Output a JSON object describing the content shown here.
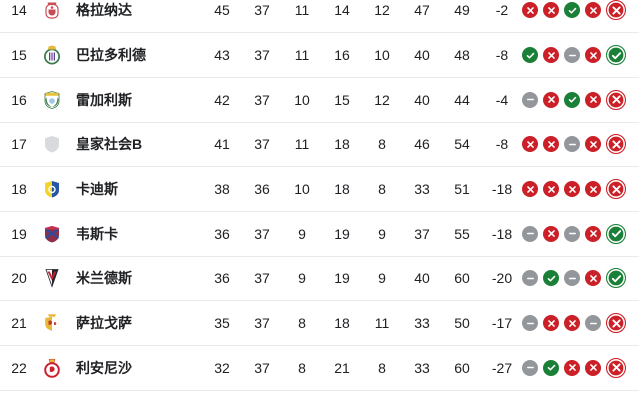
{
  "colors": {
    "win": "#1a8038",
    "loss": "#cb2027",
    "draw": "#93969b",
    "divider": "#e9eaec",
    "text": "#202124",
    "background": "#ffffff"
  },
  "table": {
    "rows": [
      {
        "position": "14",
        "team": "格拉纳达",
        "logo": "granada-crest",
        "stats": [
          "45",
          "37",
          "11",
          "14",
          "12",
          "47",
          "49",
          "-2"
        ],
        "form": [
          "loss",
          "loss",
          "win",
          "loss",
          "loss"
        ]
      },
      {
        "position": "15",
        "team": "巴拉多利德",
        "logo": "valladolid-crest",
        "stats": [
          "43",
          "37",
          "11",
          "16",
          "10",
          "40",
          "48",
          "-8"
        ],
        "form": [
          "win",
          "loss",
          "draw",
          "loss",
          "win"
        ]
      },
      {
        "position": "16",
        "team": "雷加利斯",
        "logo": "leganes-crest",
        "stats": [
          "42",
          "37",
          "10",
          "15",
          "12",
          "40",
          "44",
          "-4"
        ],
        "form": [
          "draw",
          "loss",
          "win",
          "loss",
          "loss"
        ]
      },
      {
        "position": "17",
        "team": "皇家社会B",
        "logo": "sociedad-b-crest",
        "stats": [
          "41",
          "37",
          "11",
          "18",
          "8",
          "46",
          "54",
          "-8"
        ],
        "form": [
          "loss",
          "loss",
          "draw",
          "loss",
          "loss"
        ]
      },
      {
        "position": "18",
        "team": "卡迪斯",
        "logo": "cadiz-crest",
        "stats": [
          "38",
          "36",
          "10",
          "18",
          "8",
          "33",
          "51",
          "-18"
        ],
        "form": [
          "loss",
          "loss",
          "loss",
          "loss",
          "loss"
        ]
      },
      {
        "position": "19",
        "team": "韦斯卡",
        "logo": "huesca-crest",
        "stats": [
          "36",
          "37",
          "9",
          "19",
          "9",
          "37",
          "55",
          "-18"
        ],
        "form": [
          "draw",
          "loss",
          "draw",
          "loss",
          "win"
        ]
      },
      {
        "position": "20",
        "team": "米兰德斯",
        "logo": "mirandes-crest",
        "stats": [
          "36",
          "37",
          "9",
          "19",
          "9",
          "40",
          "60",
          "-20"
        ],
        "form": [
          "draw",
          "win",
          "draw",
          "loss",
          "win"
        ]
      },
      {
        "position": "21",
        "team": "萨拉戈萨",
        "logo": "zaragoza-crest",
        "stats": [
          "35",
          "37",
          "8",
          "18",
          "11",
          "33",
          "50",
          "-17"
        ],
        "form": [
          "draw",
          "loss",
          "loss",
          "draw",
          "loss"
        ]
      },
      {
        "position": "22",
        "team": "利安尼沙",
        "logo": "leonesa-crest",
        "stats": [
          "32",
          "37",
          "8",
          "21",
          "8",
          "33",
          "60",
          "-27"
        ],
        "form": [
          "draw",
          "win",
          "loss",
          "loss",
          "loss"
        ]
      }
    ]
  }
}
